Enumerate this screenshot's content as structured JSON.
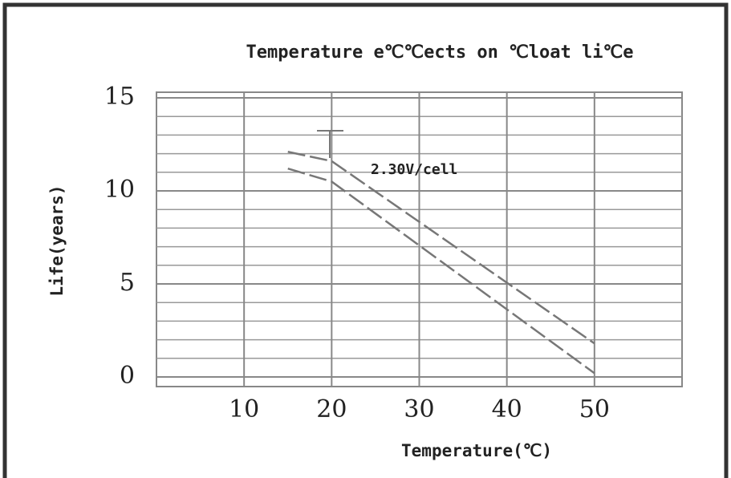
{
  "chart_data": {
    "type": "line",
    "title": "Temperature e℃℃ects on ℃loat li℃e",
    "xlabel": "Temperature(℃)",
    "ylabel": "Life(years)",
    "annotation": "2.30V/cell",
    "xlim": [
      0,
      60
    ],
    "xticks": [
      10,
      20,
      30,
      40,
      50
    ],
    "ylim": [
      0,
      15
    ],
    "yticks": [
      0,
      5,
      10,
      15
    ],
    "minor_yticks": [
      1,
      2,
      3,
      4,
      6,
      7,
      8,
      9,
      11,
      12,
      13,
      14
    ],
    "grid": true,
    "series": [
      {
        "color": "#777777",
        "x": [
          15,
          20,
          50
        ],
        "values": [
          12.1,
          11.6,
          1.8
        ]
      },
      {
        "color": "#777777",
        "x": [
          15,
          20,
          50
        ],
        "values": [
          11.2,
          10.5,
          0.2
        ]
      }
    ]
  }
}
